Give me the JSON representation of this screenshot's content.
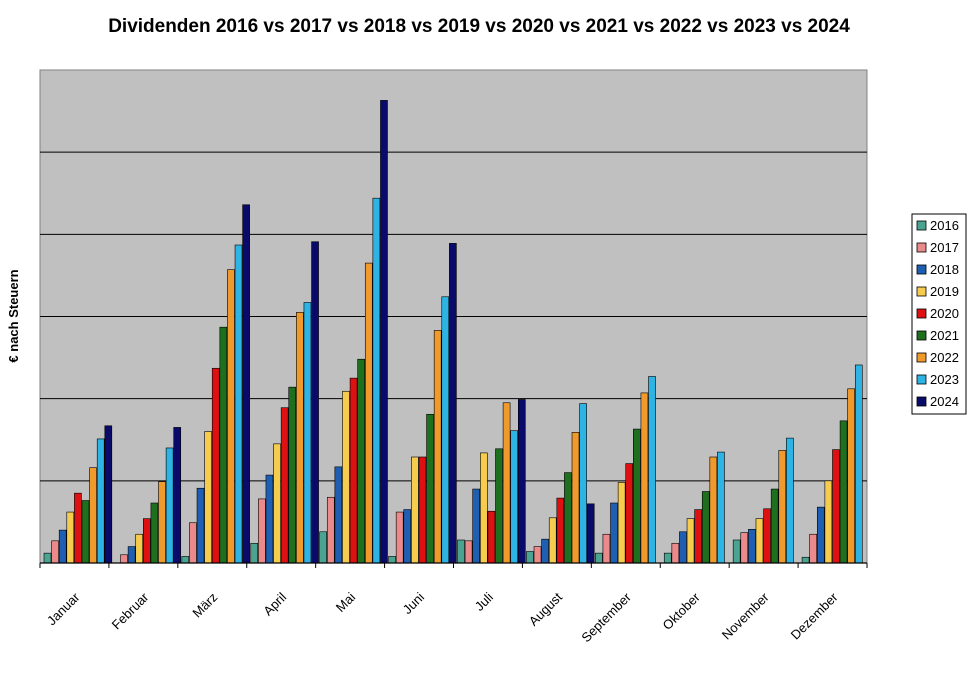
{
  "chart_data": {
    "type": "bar",
    "title": "Dividenden 2016 vs 2017 vs 2018 vs 2019 vs 2020 vs 2021 vs 2022 vs 2023 vs 2024",
    "xlabel": "",
    "ylabel": "€ nach Steuern",
    "ylim": [
      0,
      600
    ],
    "y_gridlines": [
      100,
      200,
      300,
      400,
      500
    ],
    "grid": true,
    "legend_position": "right",
    "categories": [
      "Januar",
      "Februar",
      "März",
      "April",
      "Mai",
      "Juni",
      "Juli",
      "August",
      "September",
      "Oktober",
      "November",
      "Dezember"
    ],
    "series": [
      {
        "name": "2016",
        "color": "#4BA391",
        "values": [
          12,
          0,
          8,
          24,
          38,
          8,
          28,
          14,
          12,
          12,
          28,
          7
        ]
      },
      {
        "name": "2017",
        "color": "#EA8A8A",
        "values": [
          27,
          10,
          49,
          78,
          80,
          62,
          27,
          20,
          35,
          24,
          37,
          35
        ]
      },
      {
        "name": "2018",
        "color": "#1E5FB3",
        "values": [
          40,
          20,
          91,
          107,
          117,
          65,
          90,
          29,
          73,
          38,
          41,
          68
        ]
      },
      {
        "name": "2019",
        "color": "#F5CC4E",
        "values": [
          62,
          35,
          160,
          145,
          209,
          129,
          134,
          55,
          98,
          54,
          54,
          100
        ]
      },
      {
        "name": "2020",
        "color": "#DD1111",
        "values": [
          85,
          54,
          237,
          189,
          225,
          129,
          63,
          79,
          121,
          65,
          66,
          138
        ]
      },
      {
        "name": "2021",
        "color": "#1E6F1E",
        "values": [
          76,
          73,
          287,
          214,
          248,
          181,
          139,
          110,
          163,
          87,
          90,
          173
        ]
      },
      {
        "name": "2022",
        "color": "#F09A2E",
        "values": [
          116,
          99,
          357,
          305,
          365,
          283,
          195,
          159,
          207,
          129,
          137,
          212
        ]
      },
      {
        "name": "2023",
        "color": "#2DB4E4",
        "values": [
          151,
          140,
          387,
          317,
          444,
          324,
          161,
          194,
          227,
          135,
          152,
          241
        ]
      },
      {
        "name": "2024",
        "color": "#0A0A6A",
        "values": [
          167,
          165,
          436,
          391,
          563,
          389,
          199,
          72,
          null,
          null,
          null,
          null
        ]
      }
    ]
  }
}
